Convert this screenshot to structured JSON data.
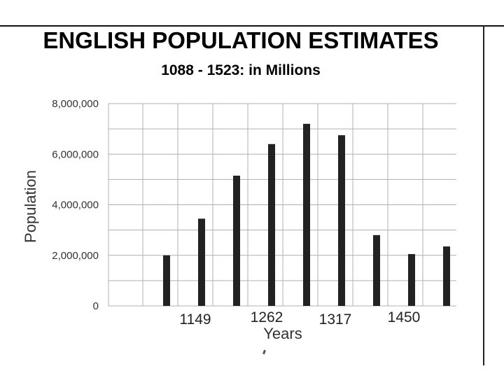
{
  "chart_data": {
    "type": "bar",
    "title": "ENGLISH POPULATION ESTIMATES",
    "subtitle": "1088 - 1523: in Millions",
    "xlabel": "Years",
    "ylabel": "Population",
    "ylim": [
      0,
      8000000
    ],
    "y_ticks": [
      0,
      2000000,
      4000000,
      6000000,
      8000000
    ],
    "y_tick_labels": [
      "0",
      "2,000,000",
      "4,000,000",
      "6,000,000",
      "8,000,000"
    ],
    "x_tick_labels": [
      "1149",
      "1262",
      "1317",
      "1450"
    ],
    "values": [
      2000000,
      3450000,
      5150000,
      6400000,
      7200000,
      6750000,
      2800000,
      2050000,
      2350000
    ],
    "grid": true,
    "legend": "none",
    "bar_color": "#222222",
    "grid_color": "#b0b0b0"
  }
}
